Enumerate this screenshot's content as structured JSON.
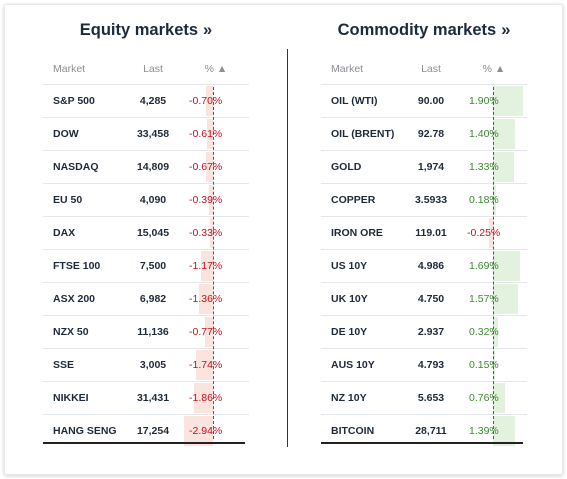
{
  "equity": {
    "title": "Equity markets",
    "title_suffix": "»",
    "headers": {
      "market": "Market",
      "last": "Last",
      "pct": "% ▲"
    },
    "rows": [
      {
        "market": "S&P 500",
        "last": "4,285",
        "pct": "-0.70%",
        "value": -0.7
      },
      {
        "market": "DOW",
        "last": "33,458",
        "pct": "-0.61%",
        "value": -0.61
      },
      {
        "market": "NASDAQ",
        "last": "14,809",
        "pct": "-0.67%",
        "value": -0.67
      },
      {
        "market": "EU 50",
        "last": "4,090",
        "pct": "-0.39%",
        "value": -0.39
      },
      {
        "market": "DAX",
        "last": "15,045",
        "pct": "-0.33%",
        "value": -0.33
      },
      {
        "market": "FTSE 100",
        "last": "7,500",
        "pct": "-1.17%",
        "value": -1.17
      },
      {
        "market": "ASX 200",
        "last": "6,982",
        "pct": "-1.36%",
        "value": -1.36
      },
      {
        "market": "NZX 50",
        "last": "11,136",
        "pct": "-0.77%",
        "value": -0.77
      },
      {
        "market": "SSE",
        "last": "3,005",
        "pct": "-1.74%",
        "value": -1.74
      },
      {
        "market": "NIKKEI",
        "last": "31,431",
        "pct": "-1.86%",
        "value": -1.86
      },
      {
        "market": "HANG SENG",
        "last": "17,254",
        "pct": "-2.94%",
        "value": -2.94
      }
    ]
  },
  "commodity": {
    "title": "Commodity markets",
    "title_suffix": "»",
    "headers": {
      "market": "Market",
      "last": "Last",
      "pct": "% ▲"
    },
    "rows": [
      {
        "market": "OIL (WTI)",
        "last": "90.00",
        "pct": "1.90%",
        "value": 1.9
      },
      {
        "market": "OIL (BRENT)",
        "last": "92.78",
        "pct": "1.40%",
        "value": 1.4
      },
      {
        "market": "GOLD",
        "last": "1,974",
        "pct": "1.33%",
        "value": 1.33
      },
      {
        "market": "COPPER",
        "last": "3.5933",
        "pct": "0.18%",
        "value": 0.18
      },
      {
        "market": "IRON ORE",
        "last": "119.01",
        "pct": "-0.25%",
        "value": -0.25
      },
      {
        "market": "US 10Y",
        "last": "4.986",
        "pct": "1.69%",
        "value": 1.69
      },
      {
        "market": "UK 10Y",
        "last": "4.750",
        "pct": "1.57%",
        "value": 1.57
      },
      {
        "market": "DE 10Y",
        "last": "2.937",
        "pct": "0.32%",
        "value": 0.32
      },
      {
        "market": "AUS 10Y",
        "last": "4.793",
        "pct": "0.15%",
        "value": 0.15
      },
      {
        "market": "NZ 10Y",
        "last": "5.653",
        "pct": "0.76%",
        "value": 0.76
      },
      {
        "market": "BITCOIN",
        "last": "28,711",
        "pct": "1.39%",
        "value": 1.39
      }
    ]
  },
  "colors": {
    "negative_text": "#c8101e",
    "positive_text": "#3c8a2e",
    "negative_bar": "#fbe3de",
    "positive_bar": "#e3f1df"
  }
}
